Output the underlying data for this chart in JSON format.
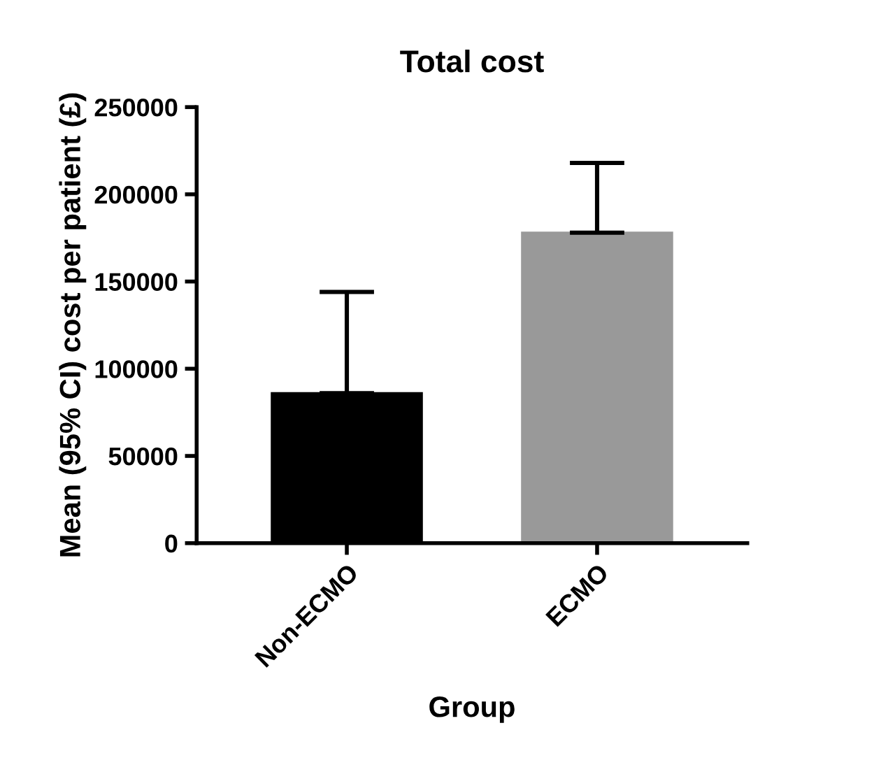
{
  "chart_data": {
    "type": "bar",
    "title": "Total cost",
    "xlabel": "Group",
    "ylabel": "Mean (95% CI) cost per patient (£)",
    "categories": [
      "Non-ECMO",
      "ECMO"
    ],
    "values": [
      86000,
      178000
    ],
    "colors": [
      "#000000",
      "#999999"
    ],
    "errors": [
      [
        86000,
        144000
      ],
      [
        178000,
        218000
      ]
    ],
    "ylim": [
      0,
      250000
    ],
    "yticks": [
      0,
      50000,
      100000,
      150000,
      200000,
      250000
    ],
    "grid": false,
    "legend": false
  }
}
